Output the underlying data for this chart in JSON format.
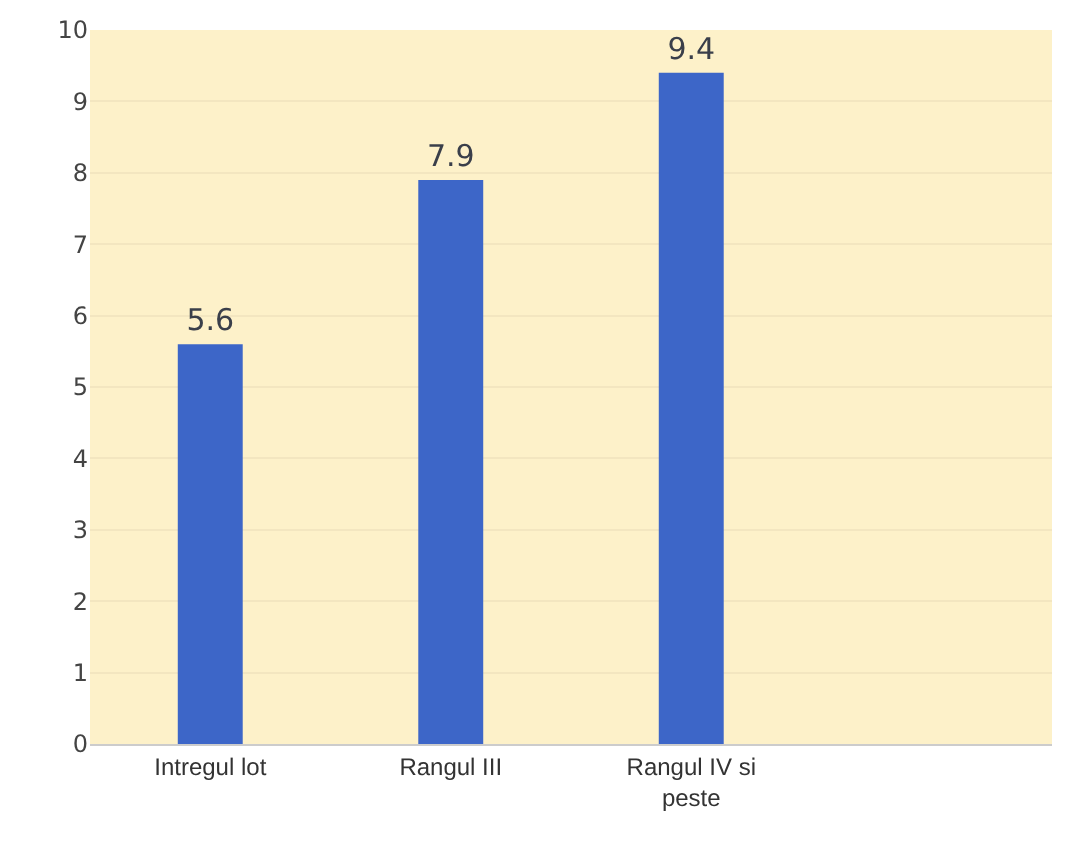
{
  "chart_data": {
    "type": "bar",
    "categories": [
      "Intregul lot",
      "Rangul III",
      "Rangul IV si peste",
      null
    ],
    "values": [
      5.6,
      7.9,
      9.4,
      null
    ],
    "color": "#3d66c8",
    "ylim": [
      0,
      10
    ],
    "yticks": [
      0,
      1,
      2,
      3,
      4,
      5,
      6,
      7,
      8,
      9,
      10
    ],
    "grid": "y",
    "data_labels": true
  }
}
